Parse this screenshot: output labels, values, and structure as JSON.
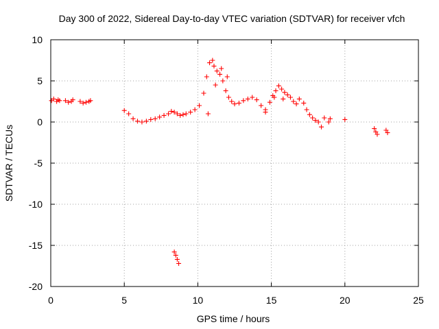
{
  "chart_data": {
    "type": "scatter",
    "title": "Day 300 of 2022, Sidereal Day-to-day VTEC variation (SDTVAR) for receiver vfch",
    "xlabel": "GPS time / hours",
    "ylabel": "SDTVAR / TECUs",
    "xlim": [
      0,
      25
    ],
    "ylim": [
      -20,
      10
    ],
    "x_ticks": [
      0,
      5,
      10,
      15,
      20,
      25
    ],
    "x_tick_labels": [
      "0",
      "5",
      "10",
      "15",
      "20",
      "25"
    ],
    "y_ticks": [
      10,
      5,
      0,
      -5,
      -10,
      -15,
      -20
    ],
    "y_tick_labels": [
      "10",
      "5",
      "0",
      "-5",
      "-10",
      "-15",
      "-20"
    ],
    "grid": true,
    "marker": "+",
    "series": [
      {
        "name": "SDTVAR",
        "color": "#ff0000",
        "x": [
          0.05,
          0.2,
          0.4,
          0.5,
          0.6,
          1.0,
          1.2,
          1.4,
          1.5,
          2.0,
          2.2,
          2.4,
          2.6,
          2.7,
          5.0,
          5.3,
          5.6,
          5.9,
          6.2,
          6.5,
          6.8,
          7.1,
          7.4,
          7.7,
          8.0,
          8.2,
          8.4,
          8.6,
          8.8,
          9.0,
          9.2,
          9.5,
          9.8,
          10.1,
          10.4,
          10.6,
          10.8,
          11.0,
          11.1,
          11.3,
          11.5,
          11.7,
          11.9,
          12.1,
          12.3,
          12.5,
          12.8,
          13.1,
          13.4,
          13.7,
          14.0,
          14.3,
          14.6,
          14.9,
          15.1,
          15.3,
          15.5,
          15.7,
          15.9,
          16.1,
          16.3,
          16.5,
          16.7,
          16.9,
          17.2,
          17.4,
          17.6,
          17.8,
          18.0,
          18.2,
          18.4,
          18.6,
          18.9,
          19.0,
          20.0,
          22.0,
          22.1,
          22.2,
          22.8,
          22.9,
          8.4,
          8.5,
          8.6,
          8.7,
          10.7,
          11.2,
          11.6,
          12.0,
          14.6,
          15.2,
          15.8
        ],
        "y": [
          2.6,
          2.8,
          2.5,
          2.7,
          2.6,
          2.6,
          2.4,
          2.5,
          2.7,
          2.5,
          2.3,
          2.4,
          2.5,
          2.6,
          1.4,
          1.0,
          0.4,
          0.1,
          0.0,
          0.1,
          0.3,
          0.4,
          0.6,
          0.8,
          1.0,
          1.3,
          1.2,
          1.0,
          0.8,
          0.9,
          1.0,
          1.2,
          1.5,
          2.0,
          3.5,
          5.5,
          7.2,
          7.5,
          6.8,
          6.2,
          5.8,
          5.0,
          3.8,
          3.0,
          2.5,
          2.2,
          2.3,
          2.6,
          2.8,
          3.0,
          2.7,
          2.0,
          1.2,
          2.4,
          3.2,
          3.8,
          4.4,
          4.0,
          3.6,
          3.3,
          3.0,
          2.5,
          2.2,
          2.8,
          2.3,
          1.5,
          0.9,
          0.5,
          0.2,
          0.0,
          -0.6,
          0.5,
          0.0,
          0.4,
          0.3,
          -0.8,
          -1.2,
          -1.5,
          -1.0,
          -1.3,
          -15.8,
          -16.2,
          -16.7,
          -17.2,
          1.0,
          4.5,
          6.5,
          5.5,
          1.5,
          3.0,
          2.8
        ]
      }
    ]
  }
}
